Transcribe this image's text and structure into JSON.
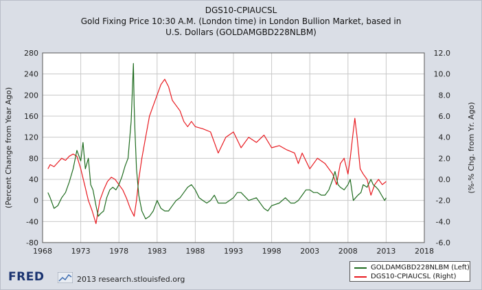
{
  "chart_data": {
    "type": "line",
    "title_lines": [
      "DGS10-CPIAUCSL",
      "Gold Fixing Price 10:30 A.M. (London time) in London Bullion Market, based in",
      "U.S. Dollars (GOLDAMGBD228NLBM)"
    ],
    "ylabel_left": "(Percent Change from Year Ago)",
    "ylabel_right": "(%-% Chg. from Yr. Ago)",
    "xlim": [
      1968,
      2018
    ],
    "x_ticks": [
      "1968",
      "1973",
      "1978",
      "1983",
      "1988",
      "1993",
      "1998",
      "2003",
      "2008",
      "2013",
      "2018"
    ],
    "ylim_left": [
      -80,
      280
    ],
    "y_ticks_left": [
      "280",
      "240",
      "200",
      "160",
      "120",
      "80",
      "40",
      "0",
      "-40",
      "-80"
    ],
    "ylim_right": [
      -6,
      12
    ],
    "y_ticks_right": [
      "12.0",
      "10.0",
      "8.0",
      "6.0",
      "4.0",
      "2.0",
      "0.0",
      "-2.0",
      "-4.0",
      "-6.0"
    ],
    "grid": true,
    "legend_position": "bottom-right",
    "series": [
      {
        "name": "GOLDAMGBD228NLBM (Left)",
        "axis": "left",
        "color": "#1e6b1e",
        "x": [
          1968.7,
          1969.0,
          1969.5,
          1970.0,
          1970.5,
          1971.0,
          1971.5,
          1972.0,
          1972.5,
          1973.0,
          1973.3,
          1973.6,
          1974.0,
          1974.3,
          1974.6,
          1975.0,
          1975.3,
          1975.6,
          1976.0,
          1976.4,
          1976.8,
          1977.2,
          1977.6,
          1978.0,
          1978.4,
          1978.8,
          1979.2,
          1979.6,
          1979.9,
          1980.0,
          1980.1,
          1980.3,
          1980.6,
          1981.0,
          1981.5,
          1982.0,
          1982.5,
          1983.0,
          1983.5,
          1984.0,
          1984.5,
          1985.0,
          1985.5,
          1986.0,
          1986.5,
          1987.0,
          1987.5,
          1988.0,
          1988.5,
          1989.0,
          1989.5,
          1990.0,
          1990.5,
          1991.0,
          1992.0,
          1993.0,
          1993.5,
          1994.0,
          1995.0,
          1996.0,
          1997.0,
          1997.5,
          1998.0,
          1999.0,
          1999.8,
          2000.5,
          2001.0,
          2001.5,
          2002.0,
          2002.5,
          2003.0,
          2003.5,
          2004.0,
          2004.5,
          2005.0,
          2005.5,
          2006.0,
          2006.3,
          2006.7,
          2007.0,
          2007.5,
          2008.0,
          2008.3,
          2008.7,
          2009.0,
          2009.3,
          2009.7,
          2010.0,
          2010.5,
          2011.0,
          2011.3,
          2011.7,
          2012.0,
          2012.4,
          2012.8,
          2013.0
        ],
        "values": [
          15,
          5,
          -15,
          -10,
          5,
          15,
          35,
          60,
          95,
          75,
          110,
          60,
          80,
          30,
          20,
          -10,
          -30,
          -25,
          -20,
          5,
          20,
          25,
          20,
          30,
          45,
          65,
          80,
          150,
          260,
          180,
          130,
          60,
          10,
          -20,
          -35,
          -30,
          -20,
          0,
          -15,
          -20,
          -20,
          -10,
          0,
          5,
          15,
          25,
          30,
          20,
          5,
          0,
          -5,
          0,
          10,
          -5,
          -5,
          5,
          15,
          15,
          0,
          5,
          -15,
          -20,
          -10,
          -5,
          5,
          -5,
          -5,
          0,
          10,
          20,
          20,
          15,
          15,
          10,
          10,
          20,
          40,
          55,
          30,
          25,
          20,
          30,
          40,
          0,
          5,
          10,
          15,
          30,
          25,
          40,
          30,
          25,
          20,
          10,
          0,
          5
        ]
      },
      {
        "name": "DGS10-CPIAUCSL (Right)",
        "axis": "right",
        "color": "#e8191f",
        "x": [
          1968.7,
          1969.0,
          1969.5,
          1970.0,
          1970.5,
          1971.0,
          1971.5,
          1972.0,
          1972.5,
          1973.0,
          1973.5,
          1974.0,
          1974.5,
          1975.0,
          1975.5,
          1976.0,
          1976.5,
          1977.0,
          1977.5,
          1978.0,
          1978.5,
          1979.0,
          1979.5,
          1980.0,
          1980.3,
          1980.6,
          1981.0,
          1981.5,
          1982.0,
          1982.5,
          1983.0,
          1983.5,
          1984.0,
          1984.5,
          1985.0,
          1985.5,
          1986.0,
          1986.5,
          1987.0,
          1987.5,
          1988.0,
          1989.0,
          1990.0,
          1990.5,
          1991.0,
          1992.0,
          1993.0,
          1994.0,
          1995.0,
          1996.0,
          1997.0,
          1998.0,
          1999.0,
          2000.0,
          2001.0,
          2001.5,
          2002.0,
          2003.0,
          2004.0,
          2005.0,
          2006.0,
          2006.5,
          2007.0,
          2007.5,
          2008.0,
          2008.3,
          2008.6,
          2008.9,
          2009.2,
          2009.6,
          2010.0,
          2010.5,
          2011.0,
          2011.5,
          2012.0,
          2012.5,
          2013.0
        ],
        "values": [
          1.0,
          1.4,
          1.2,
          1.6,
          2.0,
          1.8,
          2.2,
          2.4,
          2.2,
          1.0,
          -0.5,
          -2.0,
          -3.0,
          -4.2,
          -2.0,
          -1.0,
          -0.2,
          0.2,
          0.0,
          -0.5,
          -1.0,
          -1.8,
          -2.8,
          -3.5,
          -2.0,
          0.0,
          2.0,
          4.0,
          6.0,
          7.0,
          8.0,
          9.0,
          9.5,
          8.8,
          7.5,
          7.0,
          6.5,
          5.5,
          5.0,
          5.5,
          5.0,
          4.8,
          4.5,
          3.5,
          2.5,
          4.0,
          4.5,
          3.0,
          4.0,
          3.5,
          4.2,
          3.0,
          3.2,
          2.8,
          2.5,
          1.5,
          2.5,
          1.0,
          2.0,
          1.5,
          0.5,
          -0.5,
          1.5,
          2.0,
          0.5,
          2.0,
          4.0,
          5.8,
          4.0,
          1.0,
          0.5,
          0.0,
          -1.5,
          -0.5,
          0.0,
          -0.5,
          -0.2
        ]
      }
    ]
  },
  "footer": {
    "logo": "FRED",
    "logo_icon": "line-chart-icon",
    "credit": "2013 research.stlouisfed.org"
  },
  "colors": {
    "background": "#dadee6",
    "plot_background": "#ffffff",
    "grid": "#c8c8c8",
    "logo": "#1a3370"
  }
}
